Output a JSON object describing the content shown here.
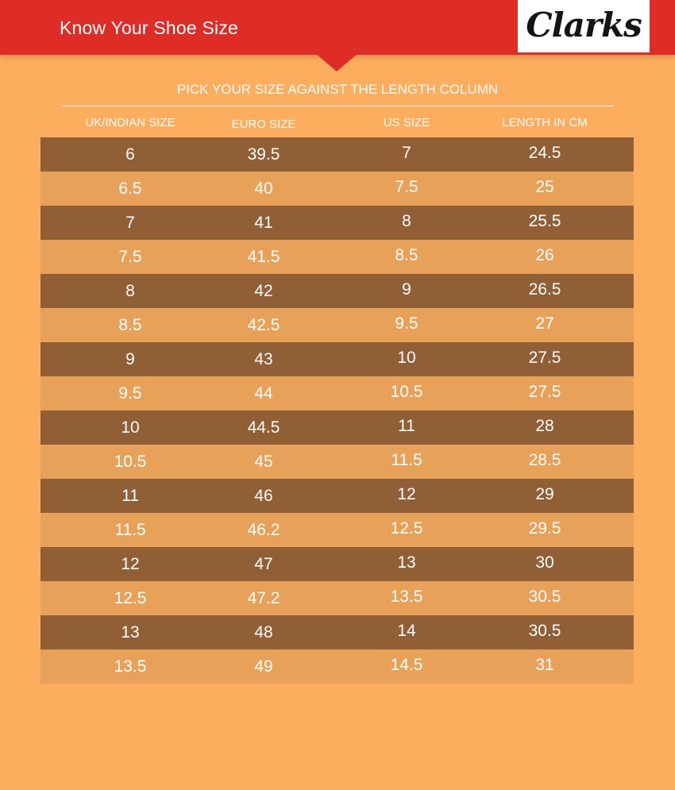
{
  "header": {
    "title": "Know Your Shoe Size",
    "logo": "Clarks"
  },
  "subtitle": "PICK YOUR SIZE AGAINST THE LENGTH COLUMN",
  "table": {
    "columns": [
      "UK/INDIAN SIZE",
      "EURO SIZE",
      "US SIZE",
      "LENGTH IN CM"
    ],
    "rows": [
      [
        "6",
        "39.5",
        "7",
        "24.5"
      ],
      [
        "6.5",
        "40",
        "7.5",
        "25"
      ],
      [
        "7",
        "41",
        "8",
        "25.5"
      ],
      [
        "7.5",
        "41.5",
        "8.5",
        "26"
      ],
      [
        "8",
        "42",
        "9",
        "26.5"
      ],
      [
        "8.5",
        "42.5",
        "9.5",
        "27"
      ],
      [
        "9",
        "43",
        "10",
        "27.5"
      ],
      [
        "9.5",
        "44",
        "10.5",
        "27.5"
      ],
      [
        "10",
        "44.5",
        "11",
        "28"
      ],
      [
        "10.5",
        "45",
        "11.5",
        "28.5"
      ],
      [
        "11",
        "46",
        "12",
        "29"
      ],
      [
        "11.5",
        "46.2",
        "12.5",
        "29.5"
      ],
      [
        "12",
        "47",
        "13",
        "30"
      ],
      [
        "12.5",
        "47.2",
        "13.5",
        "30.5"
      ],
      [
        "13",
        "48",
        "14",
        "30.5"
      ],
      [
        "13.5",
        "49",
        "14.5",
        "31"
      ]
    ]
  },
  "colors": {
    "background": "#FDAD5E",
    "header": "#DE2D27",
    "row_dark": "#915F35",
    "row_light": "#E8A158",
    "text": "#FFFFFF"
  }
}
